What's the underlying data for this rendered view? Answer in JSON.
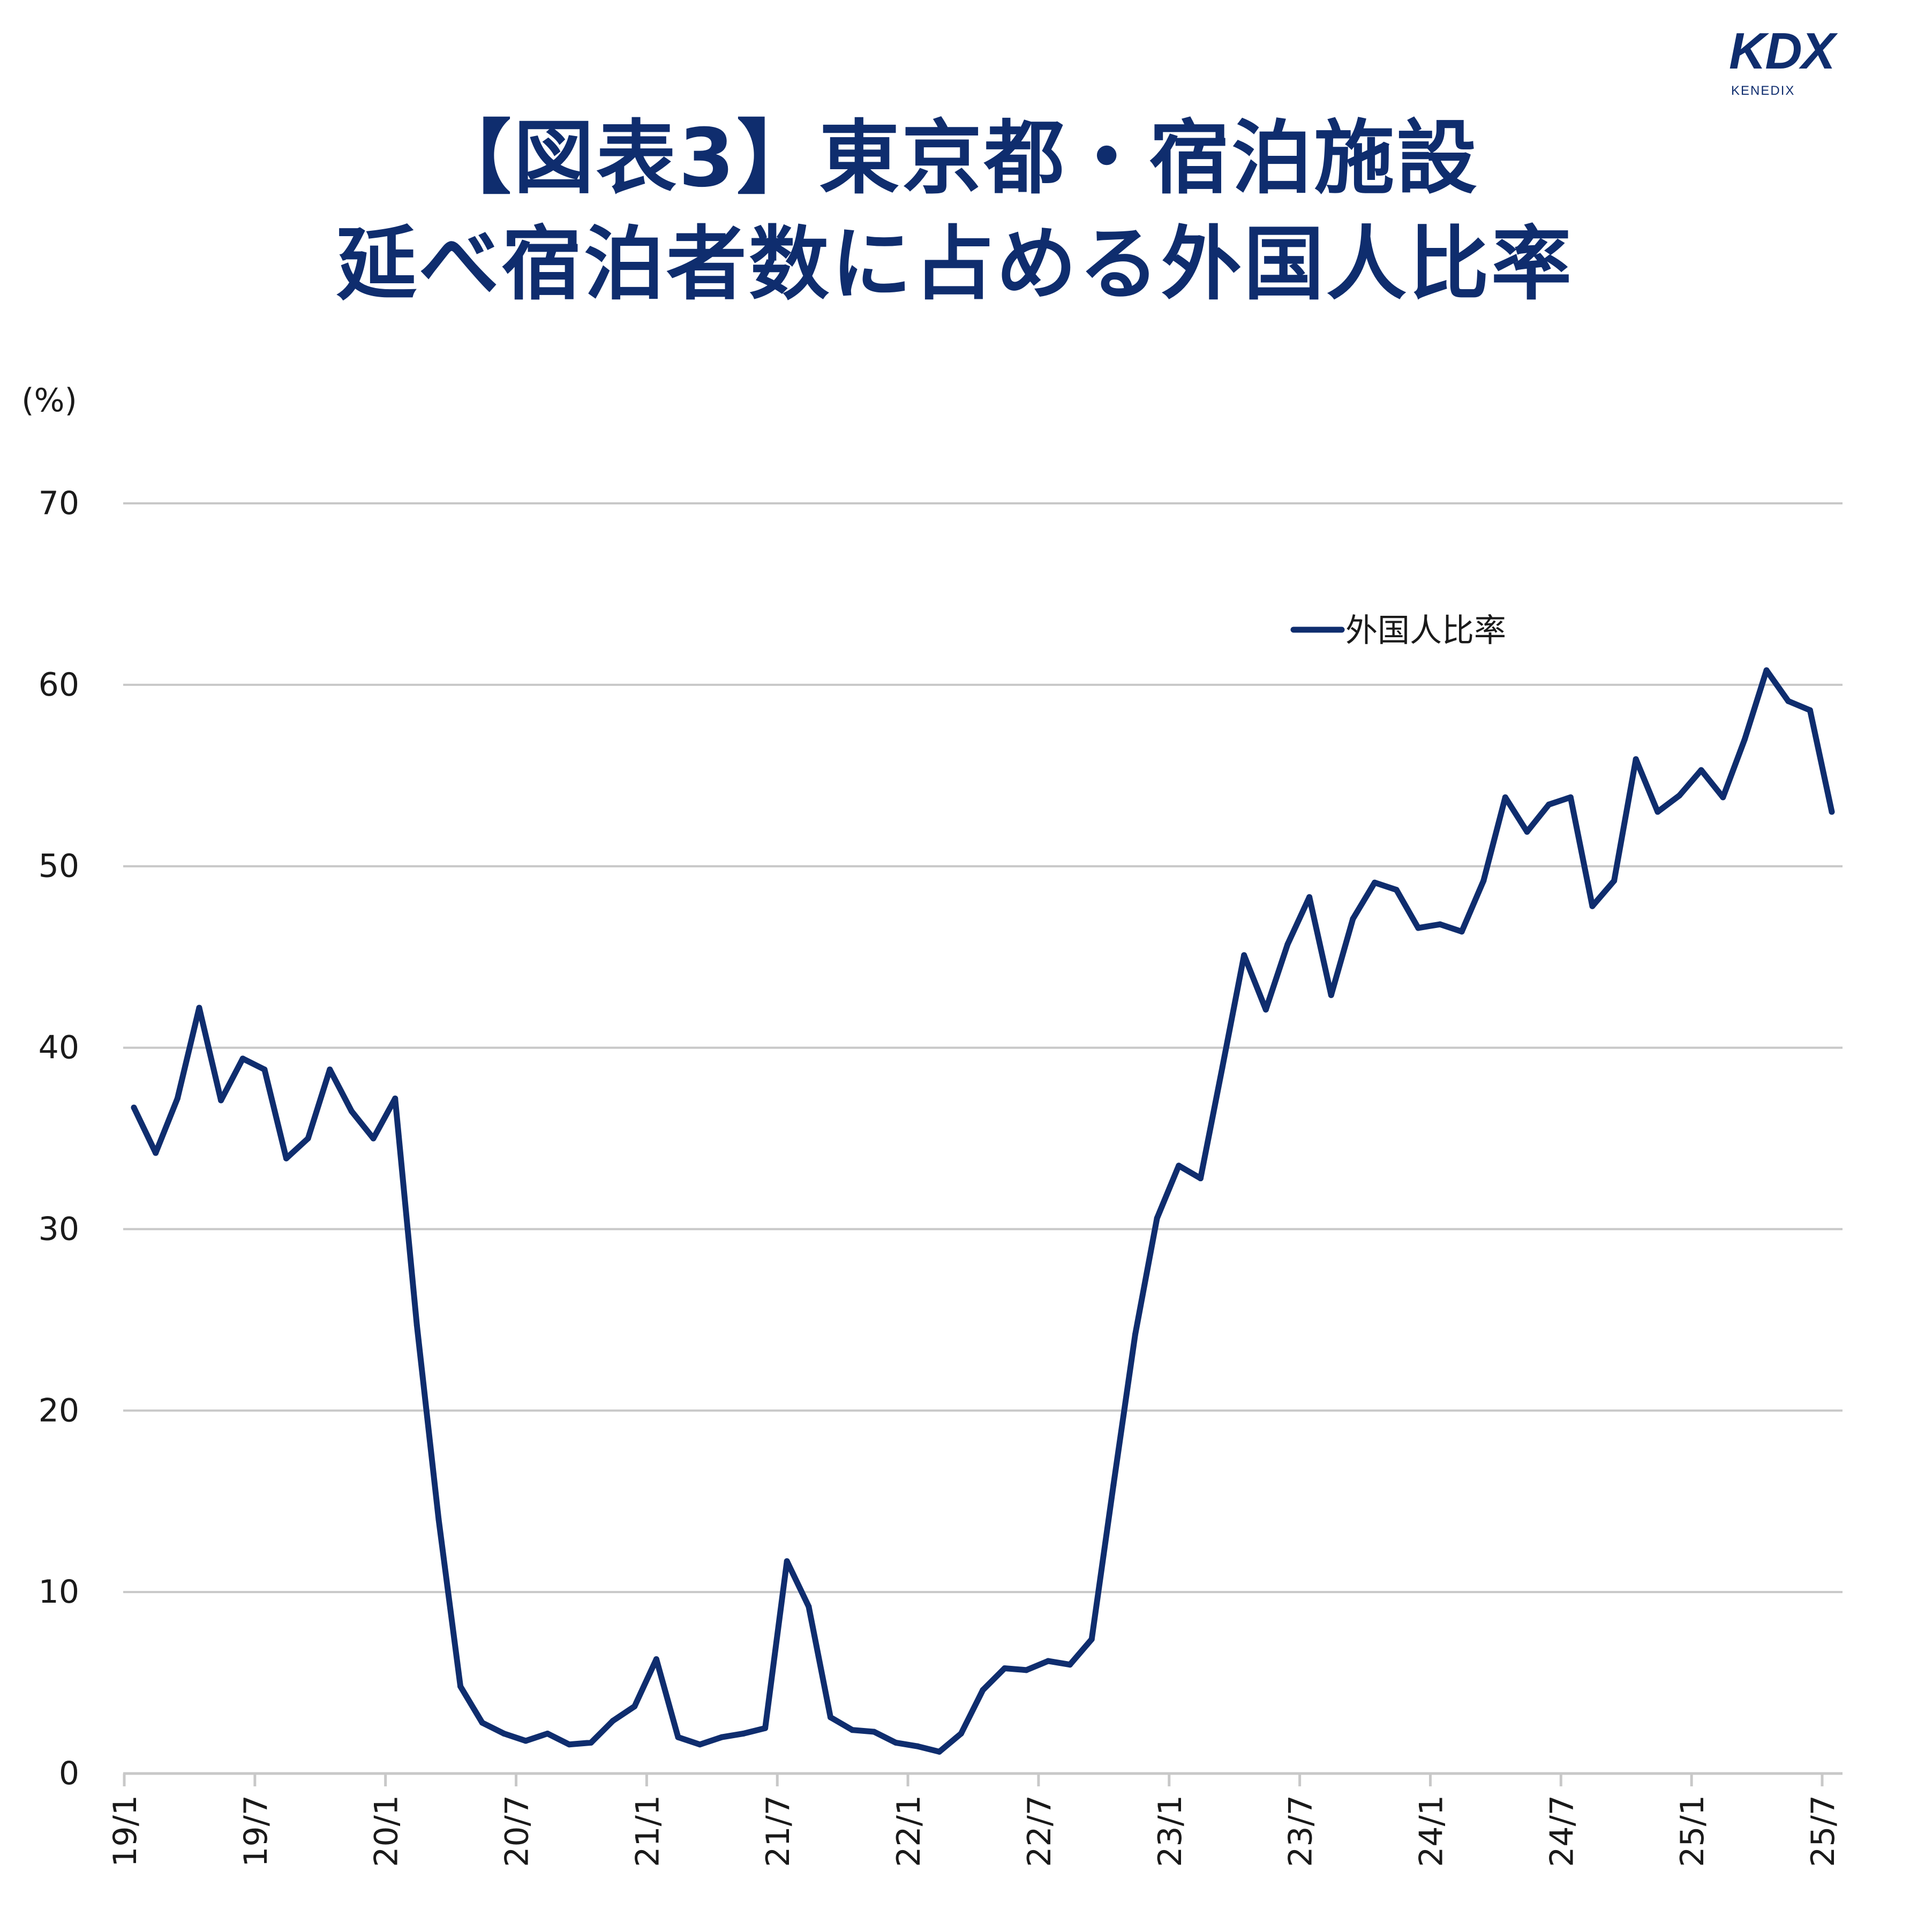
{
  "logo": {
    "main": "KDX",
    "sub": "KENEDIX"
  },
  "title": {
    "line1": "【図表3】東京都・宿泊施設",
    "line2": "延べ宿泊者数に占める外国人比率"
  },
  "colors": {
    "line": "#0f2d6e",
    "grid": "#c8c8c8",
    "title": "#0f2d6e",
    "text": "#1a1a1a"
  },
  "chart_data": {
    "type": "line",
    "title": "【図表3】東京都・宿泊施設 延べ宿泊者数に占める外国人比率",
    "ylabel": "(%)",
    "xlabel": "",
    "ylim": [
      0,
      70
    ],
    "yticks": [
      0,
      10,
      20,
      30,
      40,
      50,
      60,
      70
    ],
    "grid": true,
    "legend": "top-right",
    "xtick_labels": [
      "19/1",
      "19/7",
      "20/1",
      "20/7",
      "21/1",
      "21/7",
      "22/1",
      "22/7",
      "23/1",
      "23/7",
      "24/1",
      "24/7",
      "25/1",
      "25/7"
    ],
    "x": [
      "19/1",
      "19/2",
      "19/3",
      "19/4",
      "19/5",
      "19/6",
      "19/7",
      "19/8",
      "19/9",
      "19/10",
      "19/11",
      "19/12",
      "20/1",
      "20/2",
      "20/3",
      "20/4",
      "20/5",
      "20/6",
      "20/7",
      "20/8",
      "20/9",
      "20/10",
      "20/11",
      "20/12",
      "21/1",
      "21/2",
      "21/3",
      "21/4",
      "21/5",
      "21/6",
      "21/7",
      "21/8",
      "21/9",
      "21/10",
      "21/11",
      "21/12",
      "22/1",
      "22/2",
      "22/3",
      "22/4",
      "22/5",
      "22/6",
      "22/7",
      "22/8",
      "22/9",
      "22/10",
      "22/11",
      "22/12",
      "23/1",
      "23/2",
      "23/3",
      "23/4",
      "23/5",
      "23/6",
      "23/7",
      "23/8",
      "23/9",
      "23/10",
      "23/11",
      "23/12",
      "24/1",
      "24/2",
      "24/3",
      "24/4",
      "24/5",
      "24/6",
      "24/7",
      "24/8",
      "24/9",
      "24/10",
      "24/11",
      "24/12",
      "25/1",
      "25/2",
      "25/3",
      "25/4",
      "25/5",
      "25/6",
      "25/7"
    ],
    "series": [
      {
        "name": "外国人比率",
        "values": [
          36.7,
          34.2,
          37.2,
          42.2,
          37.1,
          39.4,
          38.8,
          33.9,
          35.0,
          38.8,
          36.5,
          35.0,
          37.2,
          24.7,
          14.0,
          4.8,
          2.8,
          2.2,
          1.8,
          2.2,
          1.6,
          1.7,
          2.9,
          3.7,
          6.3,
          2.0,
          1.6,
          2.0,
          2.2,
          2.5,
          11.7,
          9.2,
          3.1,
          2.4,
          2.3,
          1.7,
          1.5,
          1.2,
          2.2,
          4.6,
          5.8,
          5.7,
          6.2,
          6.0,
          7.4,
          15.9,
          24.2,
          30.6,
          33.5,
          32.8,
          38.9,
          45.1,
          42.1,
          45.7,
          48.3,
          42.9,
          47.1,
          49.1,
          48.7,
          46.6,
          46.8,
          46.4,
          49.2,
          53.8,
          51.9,
          53.4,
          53.8,
          47.8,
          49.2,
          55.9,
          53.0,
          53.9,
          55.3,
          53.8,
          57.0,
          60.8,
          59.1,
          58.6,
          53.0
        ]
      }
    ]
  }
}
